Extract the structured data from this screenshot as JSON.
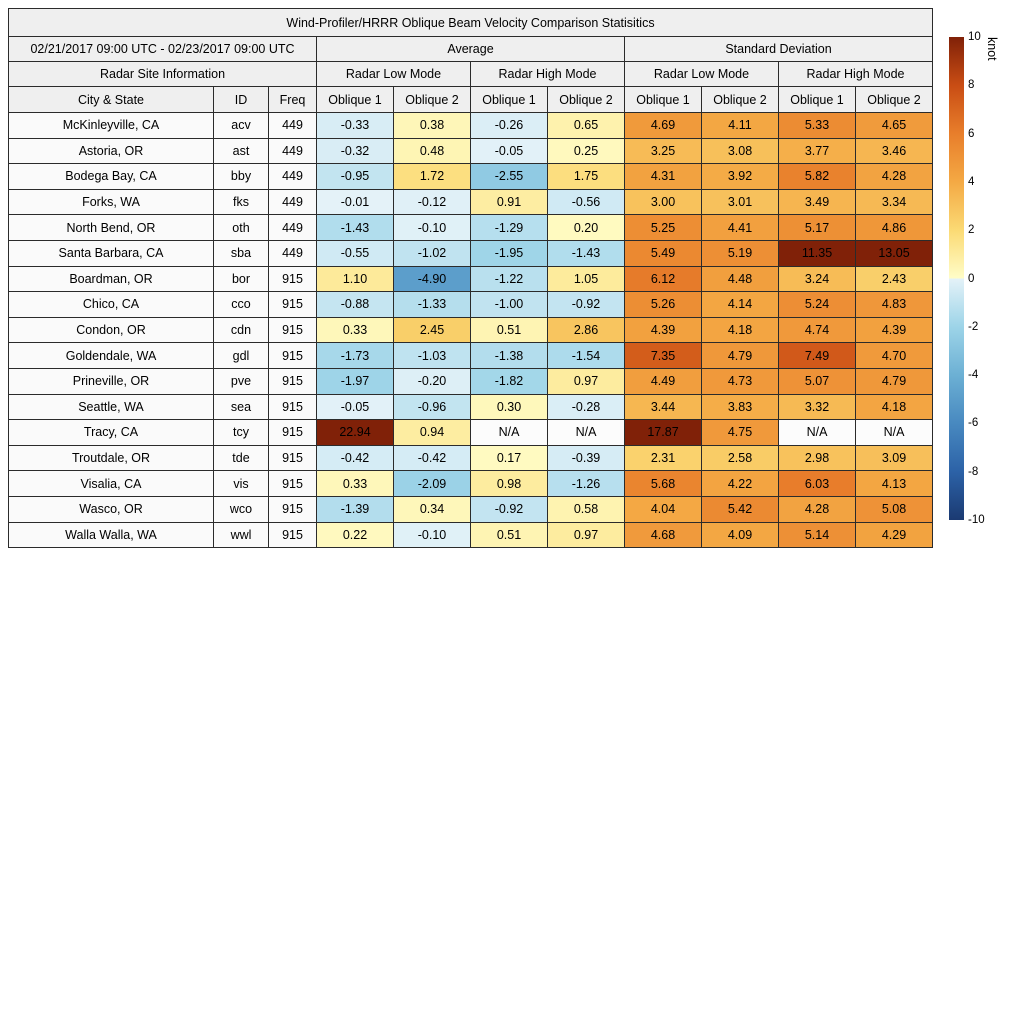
{
  "chart_data": {
    "type": "heatmap-table",
    "title": "Wind-Profiler/HRRR Oblique Beam Velocity Comparison Statisitics",
    "period": "02/21/2017 09:00 UTC - 02/23/2017 09:00 UTC",
    "group_headers": {
      "average": "Average",
      "std_dev": "Standard Deviation",
      "site_info": "Radar Site Information",
      "avg_low": "Radar Low Mode",
      "avg_high": "Radar High Mode",
      "sd_low": "Radar Low Mode",
      "sd_high": "Radar High Mode"
    },
    "column_headers": {
      "city": "City & State",
      "id": "ID",
      "freq": "Freq",
      "ob": [
        "Oblique 1",
        "Oblique 2",
        "Oblique 1",
        "Oblique 2",
        "Oblique 1",
        "Oblique 2",
        "Oblique 1",
        "Oblique 2"
      ]
    },
    "rows": [
      {
        "city": "McKinleyville, CA",
        "id": "acv",
        "freq": "449",
        "values": [
          "-0.33",
          "0.38",
          "-0.26",
          "0.65",
          "4.69",
          "4.11",
          "5.33",
          "4.65"
        ]
      },
      {
        "city": "Astoria, OR",
        "id": "ast",
        "freq": "449",
        "values": [
          "-0.32",
          "0.48",
          "-0.05",
          "0.25",
          "3.25",
          "3.08",
          "3.77",
          "3.46"
        ]
      },
      {
        "city": "Bodega Bay, CA",
        "id": "bby",
        "freq": "449",
        "values": [
          "-0.95",
          "1.72",
          "-2.55",
          "1.75",
          "4.31",
          "3.92",
          "5.82",
          "4.28"
        ]
      },
      {
        "city": "Forks, WA",
        "id": "fks",
        "freq": "449",
        "values": [
          "-0.01",
          "-0.12",
          "0.91",
          "-0.56",
          "3.00",
          "3.01",
          "3.49",
          "3.34"
        ]
      },
      {
        "city": "North Bend, OR",
        "id": "oth",
        "freq": "449",
        "values": [
          "-1.43",
          "-0.10",
          "-1.29",
          "0.20",
          "5.25",
          "4.41",
          "5.17",
          "4.86"
        ]
      },
      {
        "city": "Santa Barbara, CA",
        "id": "sba",
        "freq": "449",
        "values": [
          "-0.55",
          "-1.02",
          "-1.95",
          "-1.43",
          "5.49",
          "5.19",
          "11.35",
          "13.05"
        ]
      },
      {
        "city": "Boardman, OR",
        "id": "bor",
        "freq": "915",
        "values": [
          "1.10",
          "-4.90",
          "-1.22",
          "1.05",
          "6.12",
          "4.48",
          "3.24",
          "2.43"
        ]
      },
      {
        "city": "Chico, CA",
        "id": "cco",
        "freq": "915",
        "values": [
          "-0.88",
          "-1.33",
          "-1.00",
          "-0.92",
          "5.26",
          "4.14",
          "5.24",
          "4.83"
        ]
      },
      {
        "city": "Condon, OR",
        "id": "cdn",
        "freq": "915",
        "values": [
          "0.33",
          "2.45",
          "0.51",
          "2.86",
          "4.39",
          "4.18",
          "4.74",
          "4.39"
        ]
      },
      {
        "city": "Goldendale, WA",
        "id": "gdl",
        "freq": "915",
        "values": [
          "-1.73",
          "-1.03",
          "-1.38",
          "-1.54",
          "7.35",
          "4.79",
          "7.49",
          "4.70"
        ]
      },
      {
        "city": "Prineville, OR",
        "id": "pve",
        "freq": "915",
        "values": [
          "-1.97",
          "-0.20",
          "-1.82",
          "0.97",
          "4.49",
          "4.73",
          "5.07",
          "4.79"
        ]
      },
      {
        "city": "Seattle, WA",
        "id": "sea",
        "freq": "915",
        "values": [
          "-0.05",
          "-0.96",
          "0.30",
          "-0.28",
          "3.44",
          "3.83",
          "3.32",
          "4.18"
        ]
      },
      {
        "city": "Tracy, CA",
        "id": "tcy",
        "freq": "915",
        "values": [
          "22.94",
          "0.94",
          "N/A",
          "N/A",
          "17.87",
          "4.75",
          "N/A",
          "N/A"
        ]
      },
      {
        "city": "Troutdale, OR",
        "id": "tde",
        "freq": "915",
        "values": [
          "-0.42",
          "-0.42",
          "0.17",
          "-0.39",
          "2.31",
          "2.58",
          "2.98",
          "3.09"
        ]
      },
      {
        "city": "Visalia, CA",
        "id": "vis",
        "freq": "915",
        "values": [
          "0.33",
          "-2.09",
          "0.98",
          "-1.26",
          "5.68",
          "4.22",
          "6.03",
          "4.13"
        ]
      },
      {
        "city": "Wasco, OR",
        "id": "wco",
        "freq": "915",
        "values": [
          "-1.39",
          "0.34",
          "-0.92",
          "0.58",
          "4.04",
          "5.42",
          "4.28",
          "5.08"
        ]
      },
      {
        "city": "Walla Walla, WA",
        "id": "wwl",
        "freq": "915",
        "values": [
          "0.22",
          "-0.10",
          "0.51",
          "0.97",
          "4.68",
          "4.09",
          "5.14",
          "4.29"
        ]
      }
    ],
    "colorbar": {
      "label": "knot",
      "min": -10,
      "max": 10,
      "ticks": [
        10,
        8,
        6,
        4,
        2,
        0,
        -2,
        -4,
        -6,
        -8,
        -10
      ],
      "positive_anchors": [
        "#fffdc8",
        "#fbda74",
        "#f4a944",
        "#e87e2b",
        "#c94d14",
        "#802108"
      ],
      "negative_anchors": [
        "#e4f2f8",
        "#9dd4e8",
        "#6cb0d4",
        "#4889c0",
        "#2c62a7",
        "#1b3a72"
      ],
      "na_color": "#fcfcfc"
    }
  }
}
